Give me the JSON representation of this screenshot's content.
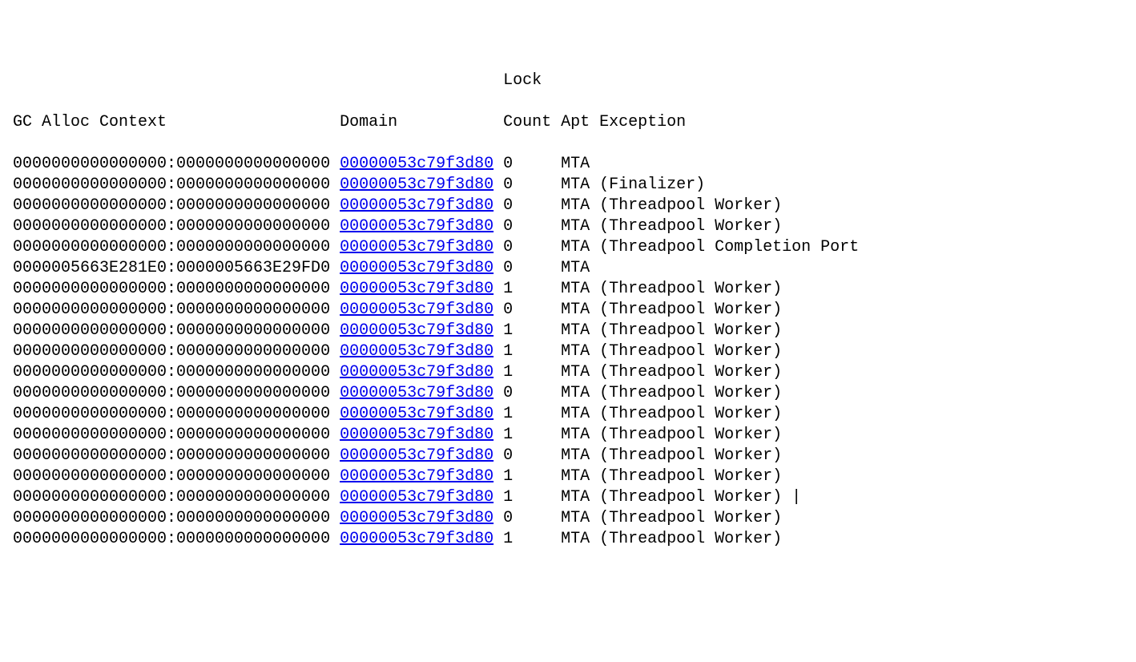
{
  "headers": {
    "gc": "GC Alloc Context",
    "domain": "Domain",
    "lock_line1": "Lock",
    "lock_line2": "Count",
    "apt": "Apt",
    "exception": "Exception"
  },
  "rows": [
    {
      "gc": "0000000000000000:0000000000000000",
      "domain": "00000053c79f3d80",
      "lock": "0",
      "apt": "MTA",
      "exception": ""
    },
    {
      "gc": "0000000000000000:0000000000000000",
      "domain": "00000053c79f3d80",
      "lock": "0",
      "apt": "MTA",
      "exception": "(Finalizer)"
    },
    {
      "gc": "0000000000000000:0000000000000000",
      "domain": "00000053c79f3d80",
      "lock": "0",
      "apt": "MTA",
      "exception": "(Threadpool Worker)"
    },
    {
      "gc": "0000000000000000:0000000000000000",
      "domain": "00000053c79f3d80",
      "lock": "0",
      "apt": "MTA",
      "exception": "(Threadpool Worker)"
    },
    {
      "gc": "0000000000000000:0000000000000000",
      "domain": "00000053c79f3d80",
      "lock": "0",
      "apt": "MTA",
      "exception": "(Threadpool Completion Port"
    },
    {
      "gc": "0000005663E281E0:0000005663E29FD0",
      "domain": "00000053c79f3d80",
      "lock": "0",
      "apt": "MTA",
      "exception": ""
    },
    {
      "gc": "0000000000000000:0000000000000000",
      "domain": "00000053c79f3d80",
      "lock": "1",
      "apt": "MTA",
      "exception": "(Threadpool Worker)"
    },
    {
      "gc": "0000000000000000:0000000000000000",
      "domain": "00000053c79f3d80",
      "lock": "0",
      "apt": "MTA",
      "exception": "(Threadpool Worker)"
    },
    {
      "gc": "0000000000000000:0000000000000000",
      "domain": "00000053c79f3d80",
      "lock": "1",
      "apt": "MTA",
      "exception": "(Threadpool Worker)"
    },
    {
      "gc": "0000000000000000:0000000000000000",
      "domain": "00000053c79f3d80",
      "lock": "1",
      "apt": "MTA",
      "exception": "(Threadpool Worker)"
    },
    {
      "gc": "0000000000000000:0000000000000000",
      "domain": "00000053c79f3d80",
      "lock": "1",
      "apt": "MTA",
      "exception": "(Threadpool Worker)"
    },
    {
      "gc": "0000000000000000:0000000000000000",
      "domain": "00000053c79f3d80",
      "lock": "0",
      "apt": "MTA",
      "exception": "(Threadpool Worker)"
    },
    {
      "gc": "0000000000000000:0000000000000000",
      "domain": "00000053c79f3d80",
      "lock": "1",
      "apt": "MTA",
      "exception": "(Threadpool Worker)"
    },
    {
      "gc": "0000000000000000:0000000000000000",
      "domain": "00000053c79f3d80",
      "lock": "1",
      "apt": "MTA",
      "exception": "(Threadpool Worker)"
    },
    {
      "gc": "0000000000000000:0000000000000000",
      "domain": "00000053c79f3d80",
      "lock": "0",
      "apt": "MTA",
      "exception": "(Threadpool Worker)"
    },
    {
      "gc": "0000000000000000:0000000000000000",
      "domain": "00000053c79f3d80",
      "lock": "1",
      "apt": "MTA",
      "exception": "(Threadpool Worker)"
    },
    {
      "gc": "0000000000000000:0000000000000000",
      "domain": "00000053c79f3d80",
      "lock": "1",
      "apt": "MTA",
      "exception": "(Threadpool Worker) |"
    },
    {
      "gc": "0000000000000000:0000000000000000",
      "domain": "00000053c79f3d80",
      "lock": "0",
      "apt": "MTA",
      "exception": "(Threadpool Worker)"
    },
    {
      "gc": "0000000000000000:0000000000000000",
      "domain": "00000053c79f3d80",
      "lock": "1",
      "apt": "MTA",
      "exception": "(Threadpool Worker)"
    }
  ]
}
